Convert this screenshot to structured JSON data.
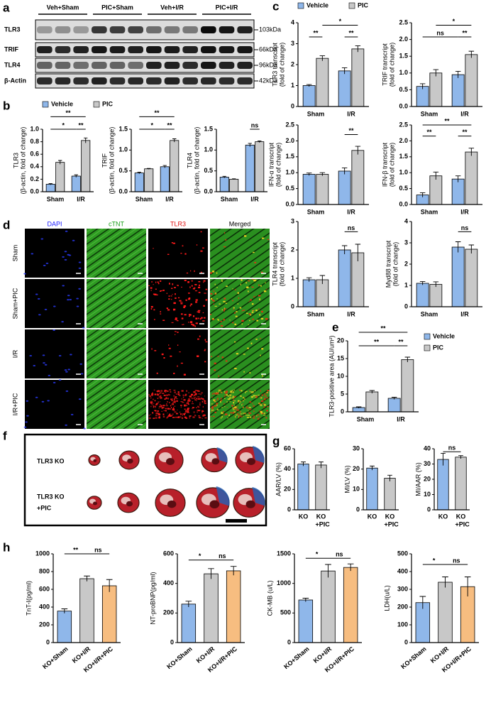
{
  "panels": [
    "a",
    "b",
    "c",
    "d",
    "e",
    "f",
    "g",
    "h"
  ],
  "blot": {
    "groups": [
      "Veh+Sham",
      "PIC+Sham",
      "Veh+I/R",
      "PIC+I/R"
    ],
    "rows": [
      {
        "label": "TLR3",
        "size": "103kDa"
      },
      {
        "label": "TRIF",
        "size": "66kDa"
      },
      {
        "label": "TLR4",
        "size": "96kDa"
      },
      {
        "label": "β-Actin",
        "size": "42kDa"
      }
    ]
  },
  "immuno": {
    "columns": [
      "DAPI",
      "cTNT",
      "TLR3",
      "Merged"
    ],
    "rows": [
      "Sham",
      "Sham+PIC",
      "I/R",
      "I/R+PIC"
    ]
  },
  "hearts": {
    "rows": [
      [
        "TLR3 KO"
      ],
      [
        "TLR3 KO",
        "+PIC"
      ]
    ]
  },
  "chart_data": [
    {
      "type": "bar",
      "ylabel": [
        "TLR3",
        "(β-actin, fold of change)"
      ],
      "categories": [
        "Sham",
        "I/R"
      ],
      "series": [
        {
          "name": "Vehicle",
          "color": "#8fb7ea",
          "values": [
            0.12,
            0.25
          ],
          "errors": [
            0.01,
            0.02
          ]
        },
        {
          "name": "PIC",
          "color": "#c8c8c8",
          "values": [
            0.47,
            0.82
          ],
          "errors": [
            0.03,
            0.04
          ]
        }
      ],
      "ylim": [
        0,
        1
      ],
      "yticks": [
        {
          "value": 0,
          "label": "0.0"
        },
        0.2,
        0.4,
        0.6,
        0.8,
        {
          "value": 1,
          "label": "1.0"
        }
      ],
      "annotations": [
        "**",
        "*",
        "**"
      ],
      "legend": "top"
    },
    {
      "type": "bar",
      "ylabel": [
        "TRIF",
        "(β-actin, fold of change)"
      ],
      "categories": [
        "Sham",
        "I/R"
      ],
      "series": [
        {
          "color": "#8fb7ea",
          "values": [
            0.45,
            0.6
          ],
          "errors": [
            0.02,
            0.03
          ]
        },
        {
          "color": "#c8c8c8",
          "values": [
            0.55,
            1.23
          ],
          "errors": [
            0.01,
            0.04
          ]
        }
      ],
      "ylim": [
        0,
        1.5
      ],
      "yticks": [
        {
          "value": 0,
          "label": "0.0"
        },
        0.5,
        {
          "value": 1,
          "label": "1.0"
        },
        1.5
      ],
      "annotations": [
        "**",
        "*",
        "**"
      ]
    },
    {
      "type": "bar",
      "ylabel": [
        "TLR4",
        "(β-actin, fold of change)"
      ],
      "categories": [
        "Sham",
        "I/R"
      ],
      "series": [
        {
          "color": "#8fb7ea",
          "values": [
            0.35,
            1.12
          ],
          "errors": [
            0.02,
            0.04
          ]
        },
        {
          "color": "#c8c8c8",
          "values": [
            0.3,
            1.2
          ],
          "errors": [
            0.01,
            0.02
          ]
        }
      ],
      "ylim": [
        0,
        1.5
      ],
      "yticks": [
        {
          "value": 0,
          "label": "0.0"
        },
        0.5,
        {
          "value": 1,
          "label": "1.0"
        },
        1.5
      ],
      "annotations": [
        "ns"
      ]
    },
    {
      "type": "bar",
      "ylabel": [
        "TLR3 transcript",
        "(fold of change)"
      ],
      "categories": [
        "Sham",
        "I/R"
      ],
      "series": [
        {
          "name": "Vehicle",
          "color": "#8fb7ea",
          "values": [
            1.0,
            1.7
          ],
          "errors": [
            0.05,
            0.15
          ]
        },
        {
          "name": "PIC",
          "color": "#c8c8c8",
          "values": [
            2.3,
            2.75
          ],
          "errors": [
            0.12,
            0.15
          ]
        }
      ],
      "ylim": [
        0,
        4
      ],
      "yticks": [
        0,
        1,
        2,
        3,
        4
      ],
      "annotations": [
        "*",
        "**",
        "**"
      ],
      "legend": "top"
    },
    {
      "type": "bar",
      "ylabel": [
        "TRIF transcript",
        "(fold of change)"
      ],
      "categories": [
        "Sham",
        "I/R"
      ],
      "series": [
        {
          "color": "#8fb7ea",
          "values": [
            0.6,
            0.95
          ],
          "errors": [
            0.08,
            0.1
          ]
        },
        {
          "color": "#c8c8c8",
          "values": [
            1.0,
            1.55
          ],
          "errors": [
            0.1,
            0.1
          ]
        }
      ],
      "ylim": [
        0,
        2.5
      ],
      "yticks": [
        {
          "value": 0,
          "label": "0.0"
        },
        0.5,
        {
          "value": 1,
          "label": "1.0"
        },
        1.5,
        {
          "value": 2,
          "label": "2.0"
        },
        2.5
      ],
      "annotations": [
        "*",
        "ns",
        "**"
      ]
    },
    {
      "type": "bar",
      "ylabel": [
        "IFN-α transcript",
        "(fold of change)"
      ],
      "categories": [
        "Sham",
        "I/R"
      ],
      "series": [
        {
          "color": "#8fb7ea",
          "values": [
            0.95,
            1.05
          ],
          "errors": [
            0.04,
            0.1
          ]
        },
        {
          "color": "#c8c8c8",
          "values": [
            0.95,
            1.7
          ],
          "errors": [
            0.05,
            0.13
          ]
        }
      ],
      "ylim": [
        0,
        2.5
      ],
      "yticks": [
        {
          "value": 0,
          "label": "0.0"
        },
        0.5,
        {
          "value": 1,
          "label": "1.0"
        },
        1.5,
        {
          "value": 2,
          "label": "2.0"
        },
        2.5
      ],
      "annotations": [
        "**"
      ]
    },
    {
      "type": "bar",
      "ylabel": [
        "IFN-β transcript",
        "(fold of change)"
      ],
      "categories": [
        "Sham",
        "I/R"
      ],
      "series": [
        {
          "color": "#8fb7ea",
          "values": [
            0.3,
            0.8
          ],
          "errors": [
            0.07,
            0.1
          ]
        },
        {
          "color": "#c8c8c8",
          "values": [
            0.9,
            1.65
          ],
          "errors": [
            0.12,
            0.12
          ]
        }
      ],
      "ylim": [
        0,
        2.5
      ],
      "yticks": [
        {
          "value": 0,
          "label": "0.0"
        },
        0.5,
        {
          "value": 1,
          "label": "1.0"
        },
        1.5,
        {
          "value": 2,
          "label": "2.0"
        },
        2.5
      ],
      "annotations": [
        "**",
        "**",
        "**"
      ]
    },
    {
      "type": "bar",
      "ylabel": [
        "TLR4 transcript",
        "(fold of change)"
      ],
      "categories": [
        "Sham",
        "I/R"
      ],
      "series": [
        {
          "color": "#8fb7ea",
          "values": [
            0.95,
            2.0
          ],
          "errors": [
            0.07,
            0.15
          ]
        },
        {
          "color": "#c8c8c8",
          "values": [
            0.95,
            1.9
          ],
          "errors": [
            0.15,
            0.3
          ]
        }
      ],
      "ylim": [
        0,
        3
      ],
      "yticks": [
        0,
        1,
        2,
        3
      ],
      "annotations": [
        "ns"
      ]
    },
    {
      "type": "bar",
      "ylabel": [
        "Myd88 transcript",
        "(fold of change)"
      ],
      "categories": [
        "Sham",
        "I/R"
      ],
      "series": [
        {
          "color": "#8fb7ea",
          "values": [
            1.1,
            2.8
          ],
          "errors": [
            0.08,
            0.25
          ]
        },
        {
          "color": "#c8c8c8",
          "values": [
            1.05,
            2.7
          ],
          "errors": [
            0.12,
            0.2
          ]
        }
      ],
      "ylim": [
        0,
        4
      ],
      "yticks": [
        0,
        1,
        2,
        3,
        4
      ],
      "annotations": [
        "ns"
      ]
    },
    {
      "type": "bar",
      "ylabel": [
        "TLR3-positive area (AU/um²)"
      ],
      "categories": [
        "Sham",
        "I/R"
      ],
      "series": [
        {
          "name": "Vehicle",
          "color": "#8fb7ea",
          "values": [
            1.2,
            3.8
          ],
          "errors": [
            0.2,
            0.3
          ]
        },
        {
          "name": "PIC",
          "color": "#c8c8c8",
          "values": [
            5.6,
            14.7
          ],
          "errors": [
            0.4,
            0.7
          ]
        }
      ],
      "ylim": [
        0,
        20
      ],
      "yticks": [
        0,
        5,
        10,
        15,
        20
      ],
      "annotations": [
        "**",
        "**",
        "**"
      ],
      "legend": "right"
    },
    {
      "type": "bar",
      "ylabel": [
        "AAR/LV (%)"
      ],
      "categories": [
        [
          "KO"
        ],
        [
          "KO",
          "+PIC"
        ]
      ],
      "values": [
        45,
        44
      ],
      "errors": [
        2,
        3
      ],
      "colors": [
        "#8fb7ea",
        "#c8c8c8"
      ],
      "ylim": [
        0,
        60
      ],
      "yticks": [
        0,
        20,
        40,
        60
      ],
      "annotations": []
    },
    {
      "type": "bar",
      "ylabel": [
        "MI/LV (%)"
      ],
      "categories": [
        [
          "KO"
        ],
        [
          "KO",
          "+PIC"
        ]
      ],
      "values": [
        20.5,
        15.5
      ],
      "errors": [
        1,
        1.5
      ],
      "colors": [
        "#8fb7ea",
        "#c8c8c8"
      ],
      "ylim": [
        0,
        30
      ],
      "yticks": [
        0,
        10,
        20,
        30
      ],
      "annotations": []
    },
    {
      "type": "bar",
      "ylabel": [
        "MI/AAR (%)"
      ],
      "categories": [
        [
          "KO"
        ],
        [
          "KO",
          "+PIC"
        ]
      ],
      "values": [
        33,
        34.5
      ],
      "errors": [
        4,
        1
      ],
      "colors": [
        "#8fb7ea",
        "#c8c8c8"
      ],
      "ylim": [
        0,
        40
      ],
      "yticks": [
        0,
        10,
        20,
        30,
        40
      ],
      "annotations": [
        "ns"
      ]
    },
    {
      "type": "bar",
      "ylabel": [
        "TnT-I(pg/ml)"
      ],
      "categories": [
        "KO+Sham",
        "KO+I/R",
        "KO+I/R+PIC"
      ],
      "values": [
        355,
        720,
        640
      ],
      "errors": [
        25,
        30,
        70
      ],
      "colors": [
        "#8fb7ea",
        "#c8c8c8",
        "#f7bd80"
      ],
      "ylim": [
        0,
        1000
      ],
      "yticks": [
        0,
        200,
        400,
        600,
        800,
        1000
      ],
      "annotations": [
        "**",
        "ns"
      ]
    },
    {
      "type": "bar",
      "ylabel": [
        "NT-proBNP(pg/ml)"
      ],
      "categories": [
        "KO+Sham",
        "KO+I/R",
        "KO+I/R+PIC"
      ],
      "values": [
        260,
        465,
        485
      ],
      "errors": [
        20,
        35,
        30
      ],
      "colors": [
        "#8fb7ea",
        "#c8c8c8",
        "#f7bd80"
      ],
      "ylim": [
        0,
        600
      ],
      "yticks": [
        0,
        200,
        400,
        600
      ],
      "annotations": [
        "*",
        "ns"
      ]
    },
    {
      "type": "bar",
      "ylabel": [
        "CK-MB (u/L)"
      ],
      "categories": [
        "KO+Sham",
        "KO+I/R",
        "KO+I/R+PIC"
      ],
      "values": [
        720,
        1210,
        1270
      ],
      "errors": [
        30,
        110,
        60
      ],
      "colors": [
        "#8fb7ea",
        "#c8c8c8",
        "#f7bd80"
      ],
      "ylim": [
        0,
        1500
      ],
      "yticks": [
        0,
        500,
        1000,
        1500
      ],
      "annotations": [
        "*",
        "ns"
      ]
    },
    {
      "type": "bar",
      "ylabel": [
        "LDH(u/L)"
      ],
      "categories": [
        "KO+Sham",
        "KO+I/R",
        "KO+I/R+PIC"
      ],
      "values": [
        225,
        340,
        315
      ],
      "errors": [
        35,
        30,
        55
      ],
      "colors": [
        "#8fb7ea",
        "#c8c8c8",
        "#f7bd80"
      ],
      "ylim": [
        0,
        500
      ],
      "yticks": [
        0,
        100,
        200,
        300,
        400,
        500
      ],
      "annotations": [
        "*",
        "ns"
      ]
    }
  ]
}
